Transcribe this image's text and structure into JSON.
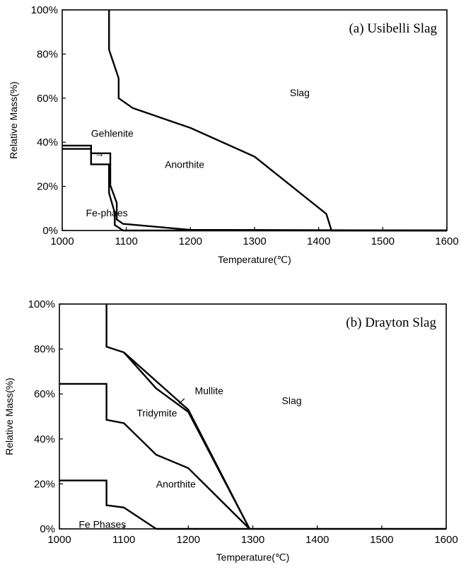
{
  "chart_data": [
    {
      "type": "line",
      "title": "(a) Usibelli Slag",
      "xlabel": "Temperature(℃)",
      "ylabel": "Relative Mass(%)",
      "xlim": [
        1000,
        1600
      ],
      "ylim": [
        0,
        100
      ],
      "x_ticks": [
        "1000",
        "1100",
        "1200",
        "1300",
        "1400",
        "1500",
        "1600"
      ],
      "y_ticks": [
        "0%",
        "20%",
        "40%",
        "60%",
        "80%",
        "100%"
      ],
      "grid": false,
      "legend": "none",
      "series": [
        {
          "points": [
            [
              1073,
              100
            ],
            [
              1073,
              82
            ],
            [
              1088,
              69
            ],
            [
              1088,
              60
            ],
            [
              1110,
              55.5
            ],
            [
              1200,
              46.5
            ],
            [
              1300,
              33.5
            ],
            [
              1412,
              7.5
            ],
            [
              1420,
              0
            ],
            [
              1600,
              0
            ]
          ]
        },
        {
          "points": [
            [
              1000,
              38.5
            ],
            [
              1045,
              38.5
            ],
            [
              1045,
              35
            ],
            [
              1075,
              35
            ],
            [
              1075,
              20.5
            ],
            [
              1085,
              12.5
            ],
            [
              1085,
              5
            ],
            [
              1095,
              3
            ],
            [
              1200,
              0.3
            ],
            [
              1600,
              0
            ]
          ]
        },
        {
          "points": [
            [
              1000,
              37
            ],
            [
              1045,
              37
            ],
            [
              1045,
              30
            ],
            [
              1073,
              30
            ],
            [
              1073,
              17
            ],
            [
              1082,
              8
            ],
            [
              1082,
              2.5
            ],
            [
              1095,
              0
            ],
            [
              1600,
              0
            ]
          ]
        }
      ],
      "labels": [
        {
          "text": "Slag",
          "x": 1355,
          "y": 62.5
        },
        {
          "text": "Anorthite",
          "x": 1160,
          "y": 30
        },
        {
          "text": "Gehlenite",
          "x": 1045,
          "y": 44
        },
        {
          "text": "Fe-phaes",
          "x": 1037,
          "y": 8
        },
        {
          "text": "→",
          "x": 1058,
          "y": 35
        }
      ]
    },
    {
      "type": "line",
      "title": "(b) Drayton Slag",
      "xlabel": "Temperature(℃)",
      "ylabel": "Relative Mass(%)",
      "xlim": [
        1000,
        1600
      ],
      "ylim": [
        0,
        100
      ],
      "x_ticks": [
        "1000",
        "1100",
        "1200",
        "1300",
        "1400",
        "1500",
        "1600"
      ],
      "y_ticks": [
        "0%",
        "20%",
        "40%",
        "60%",
        "80%",
        "100%"
      ],
      "grid": false,
      "legend": "none",
      "series": [
        {
          "points": [
            [
              1073,
              100
            ],
            [
              1073,
              81
            ],
            [
              1100,
              78.5
            ],
            [
              1200,
              53
            ],
            [
              1295,
              0
            ]
          ]
        },
        {
          "points": [
            [
              1100,
              78.5
            ],
            [
              1150,
              62.5
            ],
            [
              1200,
              52
            ],
            [
              1295,
              0
            ]
          ]
        },
        {
          "points": [
            [
              1000,
              64.5
            ],
            [
              1073,
              64.5
            ],
            [
              1073,
              48.5
            ],
            [
              1100,
              47
            ],
            [
              1150,
              33
            ],
            [
              1200,
              27
            ],
            [
              1295,
              0
            ]
          ]
        },
        {
          "points": [
            [
              1000,
              21.5
            ],
            [
              1073,
              21.5
            ],
            [
              1073,
              10.5
            ],
            [
              1100,
              9.5
            ],
            [
              1150,
              0
            ]
          ]
        },
        {
          "points": [
            [
              1150,
              0
            ],
            [
              1600,
              0
            ]
          ]
        }
      ],
      "labels": [
        {
          "text": "Slag",
          "x": 1345,
          "y": 57
        },
        {
          "text": "Mullite",
          "x": 1210,
          "y": 61.5
        },
        {
          "text": "Tridymite",
          "x": 1120,
          "y": 51.5
        },
        {
          "text": "Anorthite",
          "x": 1150,
          "y": 20
        },
        {
          "text": "Fe Phases",
          "x": 1030,
          "y": 2
        },
        {
          "text": "↙",
          "x": 1190,
          "y": 57
        }
      ]
    }
  ]
}
